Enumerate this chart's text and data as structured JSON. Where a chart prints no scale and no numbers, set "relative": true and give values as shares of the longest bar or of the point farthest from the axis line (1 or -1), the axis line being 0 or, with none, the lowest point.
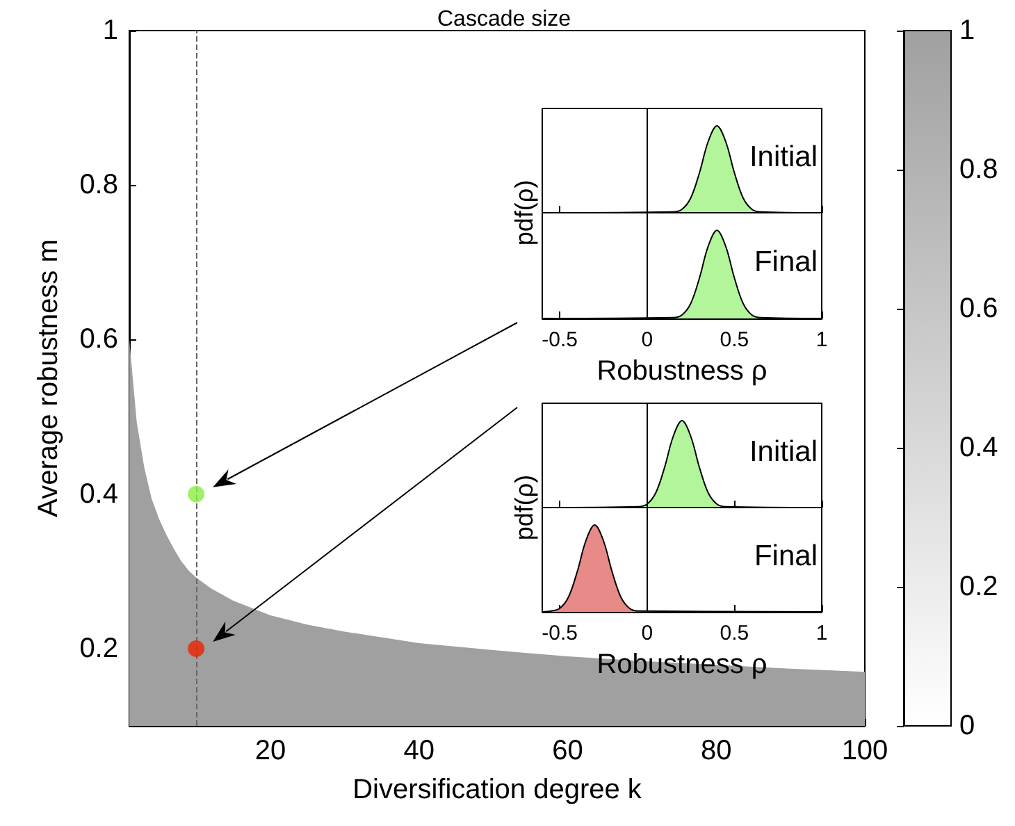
{
  "chart_data": [
    {
      "type": "area",
      "title": "Cascade size",
      "xlabel": "Diversification degree k",
      "ylabel": "Average robustness m",
      "xlim": [
        1,
        100
      ],
      "xticks": [
        20,
        40,
        60,
        80,
        100
      ],
      "ylim": [
        0.1,
        1
      ],
      "yticks": [
        0.2,
        0.4,
        0.6,
        0.8,
        1
      ],
      "clim": [
        0,
        1
      ],
      "cticks": [
        0,
        0.2,
        0.4,
        0.6,
        0.8,
        1
      ],
      "ref_lines": [
        {
          "axis": "x",
          "value": 10,
          "color": "#666666",
          "line_style": "dashed"
        }
      ],
      "series": [
        {
          "color": "#a0a0a0",
          "x": [
            1,
            2,
            3,
            4,
            5,
            6,
            7,
            8,
            9,
            10,
            12,
            15,
            20,
            25,
            30,
            40,
            50,
            60,
            70,
            80,
            90,
            100
          ],
          "values": [
            0.6,
            0.493,
            0.435,
            0.394,
            0.368,
            0.347,
            0.329,
            0.313,
            0.301,
            0.292,
            0.278,
            0.262,
            0.243,
            0.231,
            0.222,
            0.207,
            0.198,
            0.19,
            0.184,
            0.179,
            0.174,
            0.17
          ]
        },
        {
          "type": "scatter",
          "color": "#88ee44",
          "x": [
            10
          ],
          "values": [
            0.4
          ],
          "marker": "circle"
        },
        {
          "type": "scatter",
          "color": "#ee2200",
          "x": [
            10
          ],
          "values": [
            0.2
          ],
          "marker": "circle"
        }
      ]
    },
    {
      "type": "area",
      "relative": true,
      "xlim": [
        -0.6,
        1
      ],
      "xticks": [
        -0.5,
        0,
        0.5,
        1
      ],
      "tick_labels": false,
      "annotations": [
        "Initial"
      ],
      "ref_lines": [
        {
          "axis": "x",
          "value": 0,
          "color": "#000000"
        }
      ],
      "color": "#b3f59a",
      "x": [
        -0.6,
        0.15,
        0.2,
        0.25,
        0.3,
        0.35,
        0.4,
        0.45,
        0.5,
        0.55,
        0.6,
        0.65,
        1
      ],
      "values": [
        0,
        0.01,
        0.04,
        0.17,
        0.46,
        0.82,
        1,
        0.82,
        0.46,
        0.17,
        0.04,
        0.01,
        0
      ]
    },
    {
      "type": "area",
      "relative": true,
      "xlim": [
        -0.6,
        1
      ],
      "xticks": [
        -0.5,
        0,
        0.5,
        1
      ],
      "tick_labels": "x",
      "annotations": [
        "Final"
      ],
      "xlabel": "Robustness ρ",
      "ylabel": "pdf(ρ)",
      "ref_lines": [
        {
          "axis": "x",
          "value": 0,
          "color": "#000000"
        }
      ],
      "color": "#b3f59a",
      "x": [
        -0.6,
        0.15,
        0.2,
        0.25,
        0.3,
        0.35,
        0.4,
        0.45,
        0.5,
        0.55,
        0.6,
        0.65,
        1
      ],
      "values": [
        0,
        0.01,
        0.04,
        0.17,
        0.46,
        0.82,
        1,
        0.82,
        0.46,
        0.17,
        0.04,
        0.01,
        0
      ]
    },
    {
      "type": "area",
      "relative": true,
      "xlim": [
        -0.6,
        1
      ],
      "xticks": [
        -0.5,
        0,
        0.5,
        1
      ],
      "tick_labels": false,
      "annotations": [
        "Initial"
      ],
      "ref_lines": [
        {
          "axis": "x",
          "value": 0,
          "color": "#000000"
        }
      ],
      "color": "#b3f59a",
      "x": [
        -0.6,
        -0.05,
        0,
        0.05,
        0.1,
        0.15,
        0.2,
        0.25,
        0.3,
        0.35,
        0.4,
        0.45,
        1
      ],
      "values": [
        0,
        0.01,
        0.04,
        0.17,
        0.46,
        0.82,
        1,
        0.82,
        0.46,
        0.17,
        0.04,
        0.01,
        0
      ]
    },
    {
      "type": "area",
      "relative": true,
      "xlim": [
        -0.6,
        1
      ],
      "xticks": [
        -0.5,
        0,
        0.5,
        1
      ],
      "tick_labels": "x",
      "annotations": [
        "Final"
      ],
      "xlabel": "Robustness ρ",
      "ylabel": "pdf(ρ)",
      "ref_lines": [
        {
          "axis": "x",
          "value": 0,
          "color": "#000000"
        }
      ],
      "color": "#e88a88",
      "x": [
        -0.6,
        -0.55,
        -0.5,
        -0.45,
        -0.4,
        -0.35,
        -0.3,
        -0.25,
        -0.2,
        -0.15,
        -0.1,
        -0.05,
        1
      ],
      "values": [
        0,
        0.01,
        0.04,
        0.17,
        0.46,
        0.82,
        1,
        0.82,
        0.46,
        0.17,
        0.04,
        0.01,
        0
      ]
    }
  ]
}
